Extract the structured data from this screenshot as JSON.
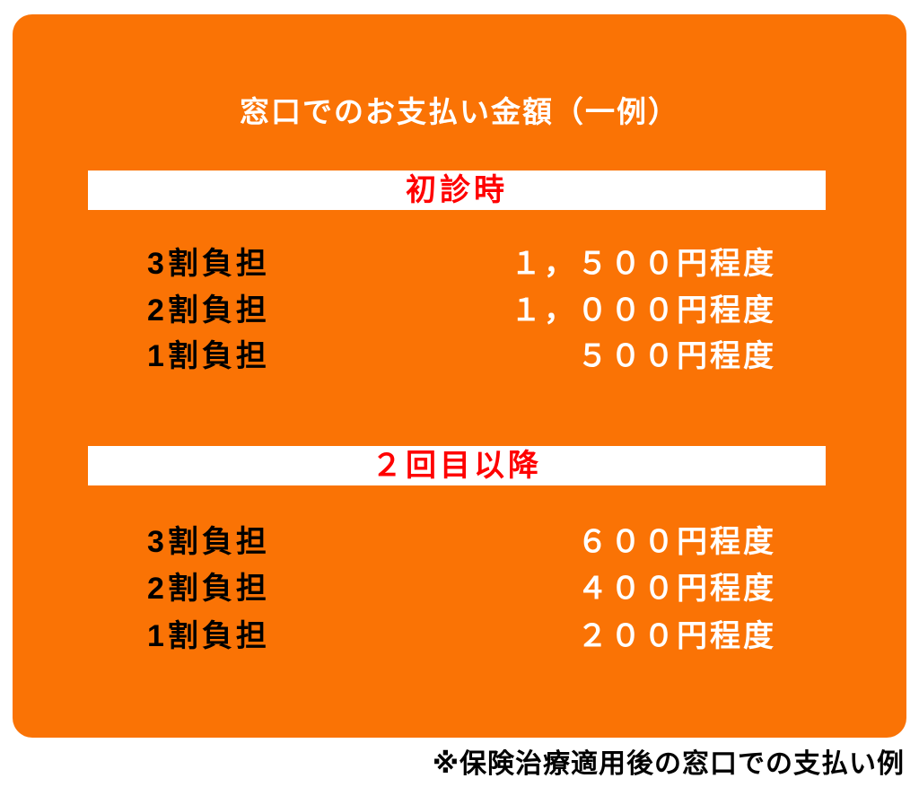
{
  "colors": {
    "card_background": "#fa7305",
    "banner_background": "#ffffff",
    "banner_text": "#ff0000",
    "title_text": "#ffffff",
    "label_text": "#000000",
    "value_text": "#ffffff",
    "footnote_text": "#000000",
    "page_background": "#ffffff"
  },
  "card": {
    "title": "窓口でのお支払い金額（一例）"
  },
  "sections": [
    {
      "heading": "初診時",
      "rows": [
        {
          "label": "3割負担",
          "value": "１，５００円程度"
        },
        {
          "label": "2割負担",
          "value": "１，０００円程度"
        },
        {
          "label": "1割負担",
          "value": "５００円程度"
        }
      ]
    },
    {
      "heading": "２回目以降",
      "rows": [
        {
          "label": "3割負担",
          "value": "６００円程度"
        },
        {
          "label": "2割負担",
          "value": "４００円程度"
        },
        {
          "label": "1割負担",
          "value": "２００円程度"
        }
      ]
    }
  ],
  "footnote": "※保険治療適用後の窓口での支払い例"
}
